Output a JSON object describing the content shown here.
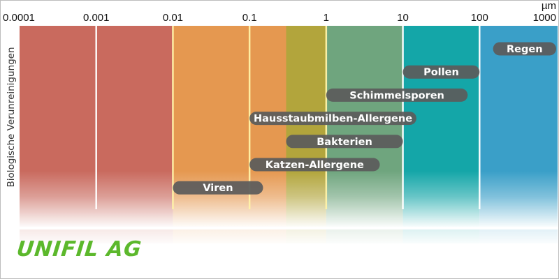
{
  "chart_data": {
    "type": "bar",
    "orientation": "horizontal-range",
    "x_scale": "log",
    "xlim": [
      0.0001,
      1000
    ],
    "x_ticks": [
      "0.0001",
      "0.001",
      "0.01",
      "0.1",
      "1",
      "10",
      "100",
      "1000"
    ],
    "unit": "µm",
    "ylabel": "Biologische Verunreinigungen",
    "bands": [
      {
        "from": 0.0001,
        "to": 0.01,
        "color": "#c96a5e"
      },
      {
        "from": 0.01,
        "to": 0.3,
        "color": "#e59850"
      },
      {
        "from": 0.3,
        "to": 1,
        "color": "#b2a53c"
      },
      {
        "from": 1,
        "to": 10,
        "color": "#6fa57e"
      },
      {
        "from": 10,
        "to": 100,
        "color": "#14a6a8"
      },
      {
        "from": 100,
        "to": 1000,
        "color": "#3a9fc8"
      }
    ],
    "bars": [
      {
        "label": "Regen",
        "start": 150,
        "end": 1000
      },
      {
        "label": "Pollen",
        "start": 10,
        "end": 100
      },
      {
        "label": "Schimmelsporen",
        "start": 1,
        "end": 70
      },
      {
        "label": "Hausstaubmilben-Allergene",
        "start": 0.1,
        "end": 15
      },
      {
        "label": "Bakterien",
        "start": 0.3,
        "end": 10
      },
      {
        "label": "Katzen-Allergene",
        "start": 0.1,
        "end": 5
      },
      {
        "label": "Viren",
        "start": 0.01,
        "end": 0.15
      }
    ],
    "bar_color": "#5b5b5b"
  },
  "logo": {
    "text": "UNiFiL AG",
    "color": "#5cb82c"
  }
}
